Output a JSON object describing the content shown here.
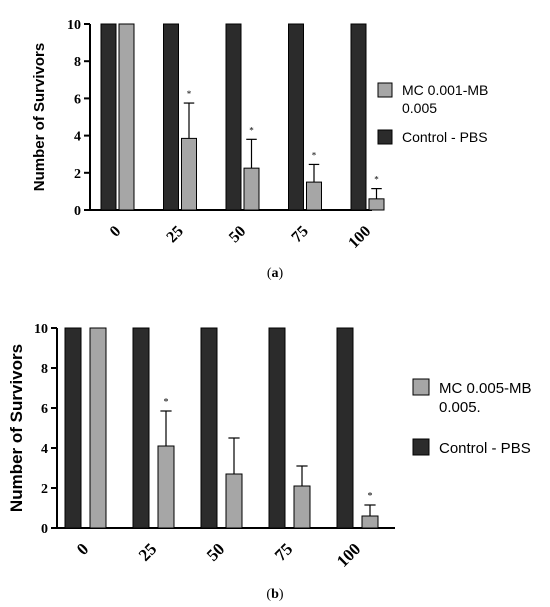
{
  "colors": {
    "control_bar": "#2b2b2b",
    "treatment_bar": "#a6a6a6",
    "axis": "#000000",
    "background": "#ffffff"
  },
  "chart_data": [
    {
      "type": "bar",
      "panel_label": "a",
      "ylabel": "Number of Survivors",
      "xlabel": "",
      "ylim": [
        0,
        10
      ],
      "yticks": [
        0,
        2,
        4,
        6,
        8,
        10
      ],
      "categories": [
        "0",
        "25",
        "50",
        "75",
        "100"
      ],
      "legend_position": "right",
      "series": [
        {
          "name": "Control - PBS",
          "color": "#2b2b2b",
          "values": [
            10,
            10,
            10,
            10,
            10
          ],
          "errors": [
            0,
            0,
            0,
            0,
            0
          ]
        },
        {
          "name": "MC 0.001-MB 0.005",
          "name_lines": [
            "MC 0.001-MB",
            "0.005"
          ],
          "color": "#a6a6a6",
          "values": [
            10,
            3.85,
            2.25,
            1.5,
            0.6
          ],
          "errors": [
            0,
            1.9,
            1.55,
            0.95,
            0.55
          ]
        }
      ],
      "significance_marker": "*",
      "significant": [
        false,
        true,
        true,
        true,
        true
      ]
    },
    {
      "type": "bar",
      "panel_label": "b",
      "ylabel": "Number of Survivors",
      "xlabel": "",
      "ylim": [
        0,
        10
      ],
      "yticks": [
        0,
        2,
        4,
        6,
        8,
        10
      ],
      "categories": [
        "0",
        "25",
        "50",
        "75",
        "100"
      ],
      "legend_position": "right",
      "series": [
        {
          "name": "Control - PBS",
          "color": "#2b2b2b",
          "values": [
            10,
            10,
            10,
            10,
            10
          ],
          "errors": [
            0,
            0,
            0,
            0,
            0
          ]
        },
        {
          "name": "MC 0.005-MB 0.005.",
          "name_lines": [
            "MC 0.005-MB",
            "0.005."
          ],
          "color": "#a6a6a6",
          "values": [
            10,
            4.1,
            2.7,
            2.1,
            0.6
          ],
          "errors": [
            0,
            1.75,
            1.8,
            1.0,
            0.55
          ]
        }
      ],
      "significance_marker": "*",
      "significant": [
        false,
        true,
        false,
        false,
        true
      ]
    }
  ]
}
